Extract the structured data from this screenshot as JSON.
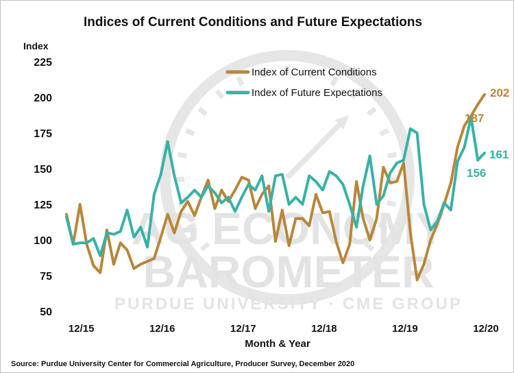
{
  "chart_data": {
    "type": "line",
    "title": "Indices of Current Conditions and Future Expectations",
    "ylabel": "Index",
    "xlabel": "Month & Year",
    "source": "Source: Purdue University Center for Commercial Agriculture, Producer Survey, December 2020",
    "watermark": {
      "line1": "AG ECONOMY",
      "line2": "BAROMETER",
      "line3": "PURDUE UNIVERSITY  ·  CME GROUP"
    },
    "ylim": [
      50,
      225
    ],
    "yticks": [
      "50",
      "75",
      "100",
      "125",
      "150",
      "175",
      "200",
      "225"
    ],
    "grid": false,
    "legend": "top-center",
    "x": [
      "10/15",
      "11/15",
      "12/15",
      "01/16",
      "02/16",
      "03/16",
      "04/16",
      "05/16",
      "06/16",
      "07/16",
      "08/16",
      "09/16",
      "10/16",
      "11/16",
      "12/16",
      "01/17",
      "02/17",
      "03/17",
      "04/17",
      "05/17",
      "06/17",
      "07/17",
      "08/17",
      "09/17",
      "10/17",
      "11/17",
      "12/17",
      "01/18",
      "02/18",
      "03/18",
      "04/18",
      "05/18",
      "06/18",
      "07/18",
      "08/18",
      "09/18",
      "10/18",
      "11/18",
      "12/18",
      "01/19",
      "02/19",
      "03/19",
      "04/19",
      "05/19",
      "06/19",
      "07/19",
      "08/19",
      "09/19",
      "10/19",
      "11/19",
      "12/19",
      "01/20",
      "02/20",
      "03/20",
      "04/20",
      "05/20",
      "06/20",
      "07/20",
      "08/20",
      "09/20",
      "10/20",
      "11/20",
      "12/20"
    ],
    "xticks": [
      {
        "label": "12/15",
        "index": 2
      },
      {
        "label": "12/16",
        "index": 14
      },
      {
        "label": "12/17",
        "index": 26
      },
      {
        "label": "12/18",
        "index": 38
      },
      {
        "label": "12/19",
        "index": 50
      },
      {
        "label": "12/20",
        "index": 62
      }
    ],
    "series": [
      {
        "name": "Index of Current Conditions",
        "color": "#b8863b",
        "values": [
          118,
          97,
          125,
          97,
          82,
          77,
          107,
          83,
          98,
          93,
          80,
          83,
          85,
          87,
          102,
          118,
          105,
          120,
          127,
          117,
          130,
          142,
          122,
          135,
          127,
          135,
          144,
          142,
          122,
          132,
          138,
          99,
          121,
          96,
          115,
          115,
          110,
          132,
          119,
          120,
          99,
          84,
          97,
          141,
          115,
          100,
          115,
          151,
          140,
          141,
          154,
          105,
          72,
          83,
          100,
          111,
          125,
          140,
          165,
          180,
          187,
          195,
          202
        ]
      },
      {
        "name": "Index of Future Expectations",
        "color": "#38b2a5",
        "values": [
          116,
          97,
          98,
          98,
          101,
          89,
          105,
          104,
          106,
          121,
          102,
          109,
          95,
          132,
          146,
          169,
          145,
          126,
          130,
          135,
          130,
          138,
          133,
          126,
          130,
          120,
          130,
          139,
          135,
          145,
          120,
          145,
          146,
          125,
          130,
          125,
          145,
          141,
          135,
          148,
          145,
          139,
          125,
          109,
          138,
          159,
          125,
          131,
          147,
          154,
          156,
          178,
          175,
          125,
          107,
          113,
          126,
          121,
          155,
          165,
          186,
          156,
          161
        ]
      }
    ],
    "annotations": [
      {
        "text": "202",
        "series": 0
      },
      {
        "text": "187",
        "series": 0
      },
      {
        "text": "161",
        "series": 1
      },
      {
        "text": "156",
        "series": 1
      }
    ]
  }
}
